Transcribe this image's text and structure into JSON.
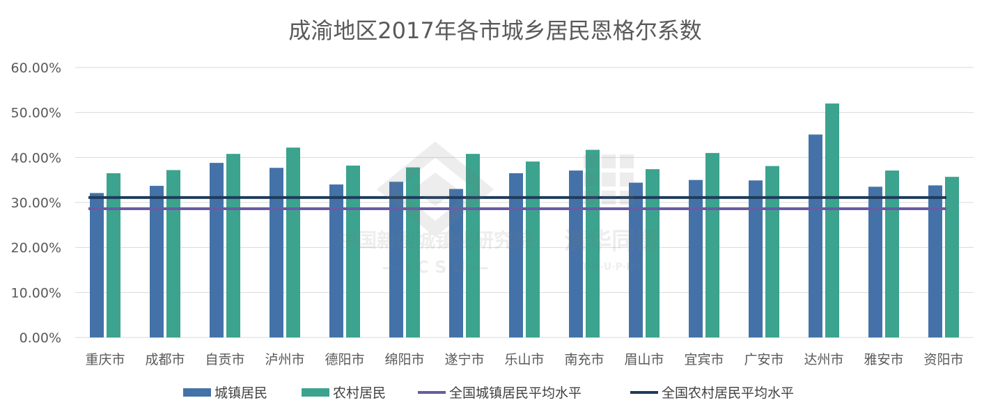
{
  "chart_data": {
    "type": "bar",
    "title": "成渝地区2017年各市城乡居民恩格尔系数",
    "xlabel": "",
    "ylabel": "",
    "ylim": [
      0,
      0.6
    ],
    "y_ticks": [
      {
        "value": 0.0,
        "label": "0.00%"
      },
      {
        "value": 0.1,
        "label": "10.00%"
      },
      {
        "value": 0.2,
        "label": "20.00%"
      },
      {
        "value": 0.3,
        "label": "30.00%"
      },
      {
        "value": 0.4,
        "label": "40.00%"
      },
      {
        "value": 0.5,
        "label": "50.00%"
      },
      {
        "value": 0.6,
        "label": "60.00%"
      }
    ],
    "grid": true,
    "legend_position": "bottom",
    "categories": [
      "重庆市",
      "成都市",
      "自贡市",
      "泸州市",
      "德阳市",
      "绵阳市",
      "遂宁市",
      "乐山市",
      "南充市",
      "眉山市",
      "宜宾市",
      "广安市",
      "达州市",
      "雅安市",
      "资阳市"
    ],
    "series": [
      {
        "name": "城镇居民",
        "kind": "bar",
        "color": "#4472A8",
        "values": [
          0.321,
          0.337,
          0.388,
          0.377,
          0.34,
          0.346,
          0.33,
          0.365,
          0.371,
          0.344,
          0.35,
          0.349,
          0.451,
          0.335,
          0.338
        ]
      },
      {
        "name": "农村居民",
        "kind": "bar",
        "color": "#3BA38E",
        "values": [
          0.365,
          0.372,
          0.408,
          0.422,
          0.382,
          0.378,
          0.408,
          0.391,
          0.417,
          0.374,
          0.41,
          0.381,
          0.52,
          0.371,
          0.357
        ]
      },
      {
        "name": "全国城镇居民平均水平",
        "kind": "line",
        "color": "#6A5BA3",
        "value": 0.286
      },
      {
        "name": "全国农村居民平均水平",
        "kind": "line",
        "color": "#1F3B5B",
        "value": 0.311
      }
    ]
  },
  "watermark": {
    "left_title": "中国新型城镇化研究院",
    "left_sub": "— I C S U —",
    "right_title": "清华同衡",
    "right_sub": "T·H·U·P·D·I"
  }
}
